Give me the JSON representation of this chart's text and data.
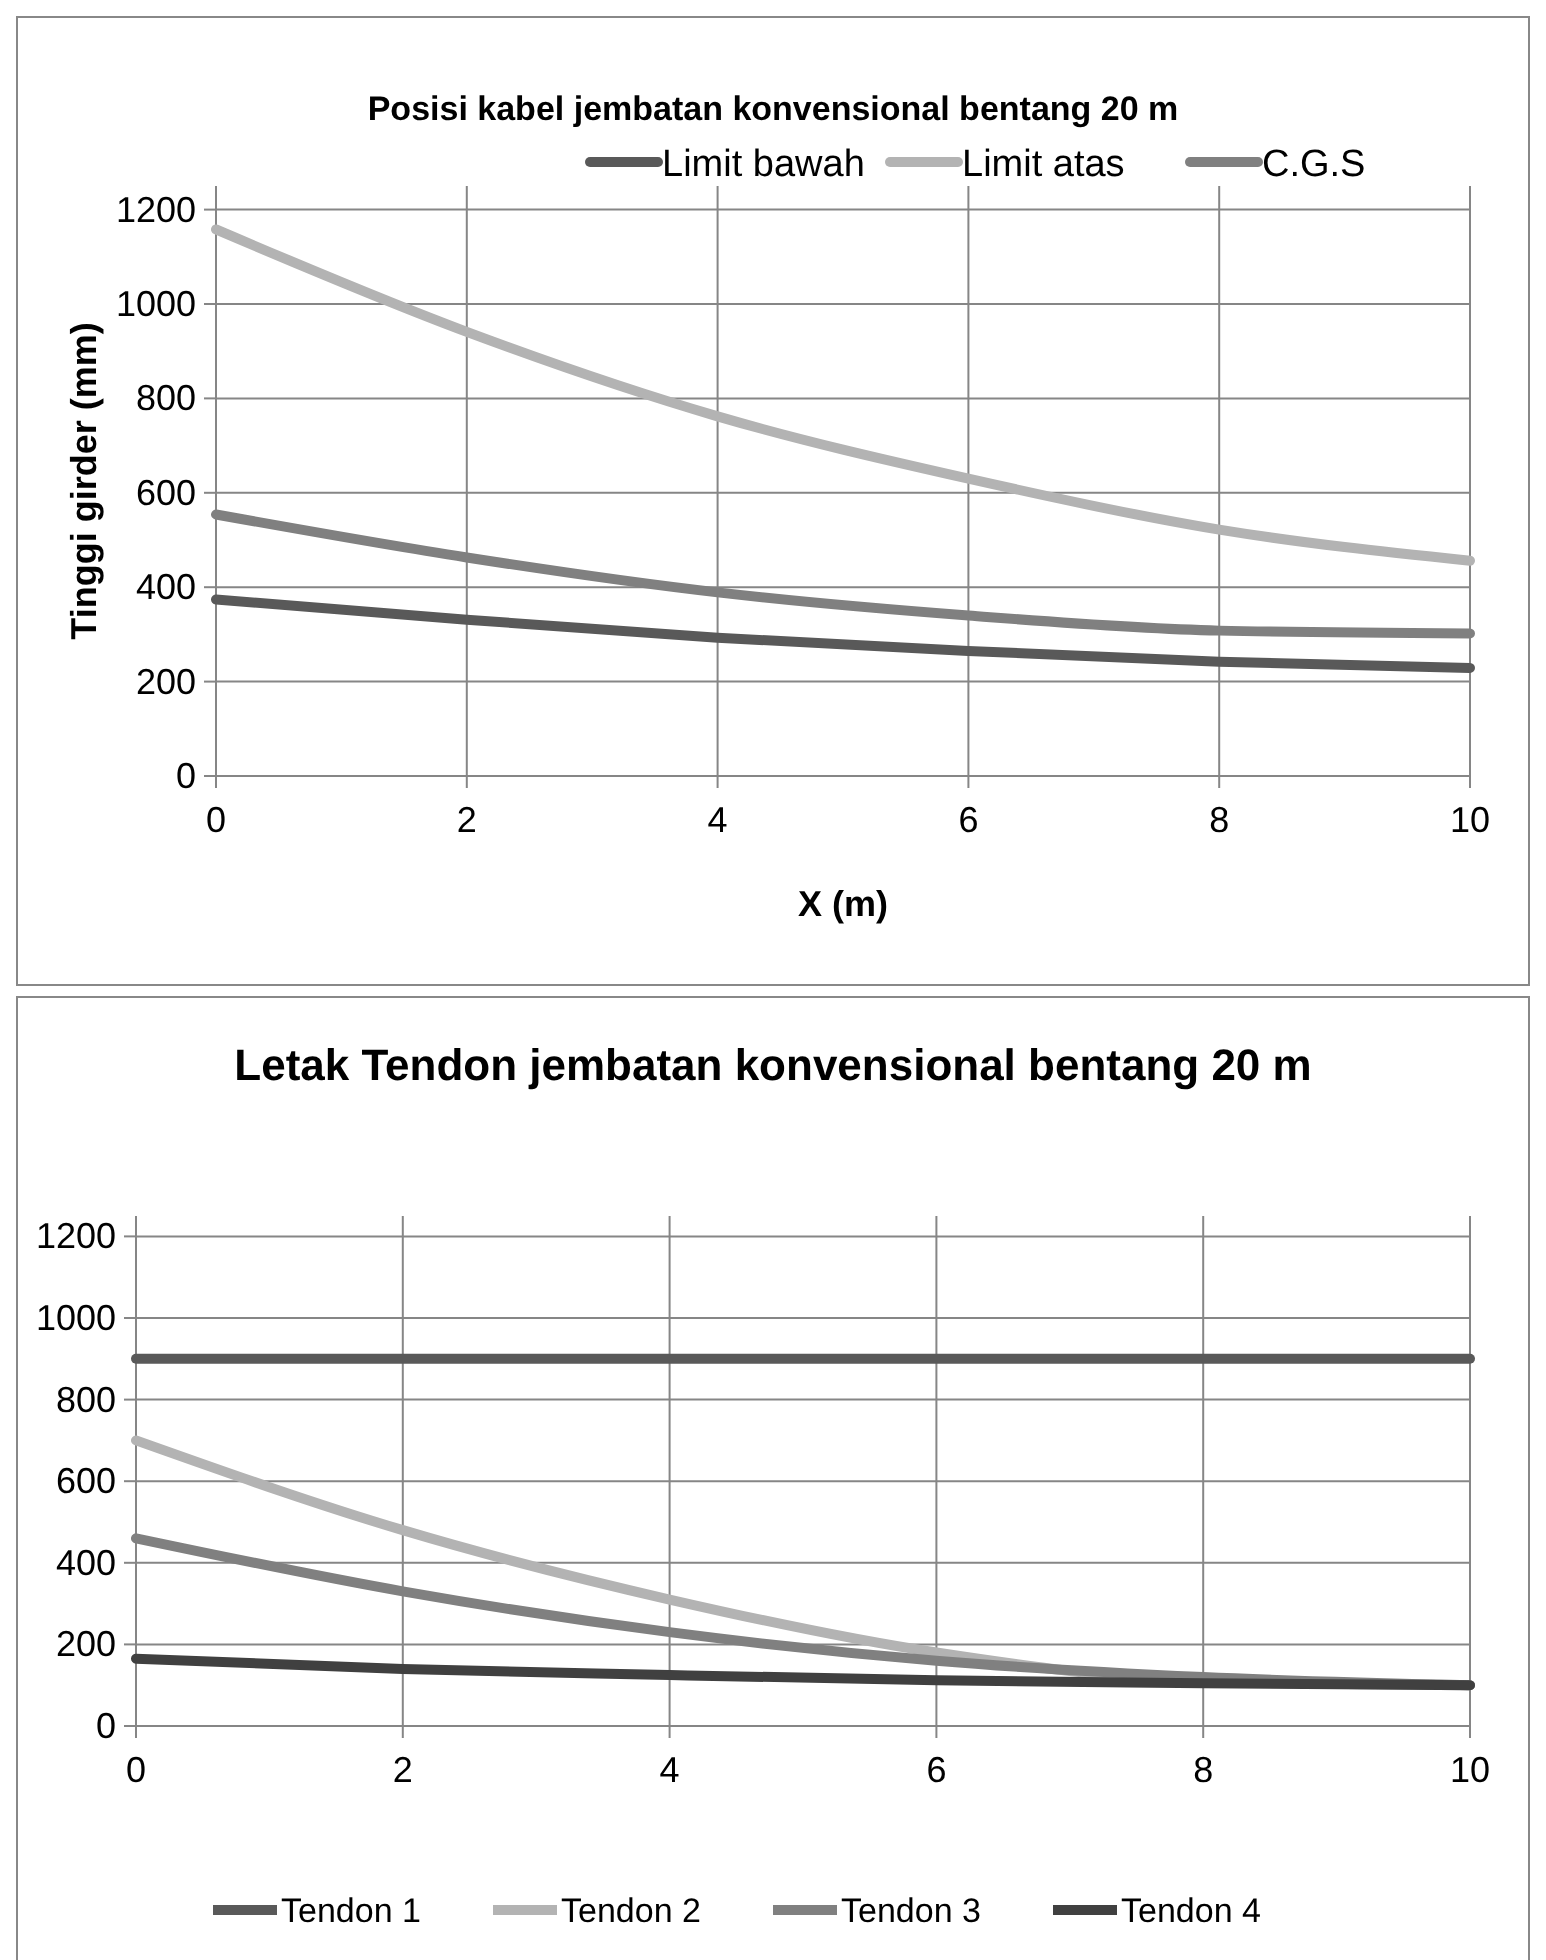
{
  "chart_data": [
    {
      "type": "line",
      "title": "Posisi kabel jembatan konvensional bentang 20 m",
      "xlabel": "X (m)",
      "ylabel": "Tinggi girder (mm)",
      "x": [
        0,
        2,
        4,
        6,
        8,
        10
      ],
      "xlim": [
        0,
        10
      ],
      "xticks": [
        0,
        2,
        4,
        6,
        8,
        10
      ],
      "ylim": [
        0,
        1250
      ],
      "yticks": [
        0,
        200,
        400,
        600,
        800,
        1000,
        1200
      ],
      "grid": true,
      "legend": "top right",
      "marker": "none",
      "line_style": "solid",
      "series": [
        {
          "name": "Limit bawah",
          "color": "#595959",
          "values": [
            374,
            331,
            293,
            265,
            242,
            229
          ]
        },
        {
          "name": "Limit atas",
          "color": "#b3b3b3",
          "values": [
            1158,
            941,
            762,
            630,
            522,
            456
          ]
        },
        {
          "name": "C.G.S",
          "color": "#808080",
          "values": [
            554,
            463,
            389,
            340,
            308,
            302
          ]
        }
      ]
    },
    {
      "type": "line",
      "title": "Letak Tendon jembatan konvensional bentang 20 m",
      "x": [
        0,
        2,
        4,
        6,
        8,
        10
      ],
      "xlim": [
        0,
        10
      ],
      "xticks": [
        0,
        2,
        4,
        6,
        8,
        10
      ],
      "ylim": [
        0,
        1250
      ],
      "yticks": [
        0,
        200,
        400,
        600,
        800,
        1000,
        1200
      ],
      "grid": true,
      "legend": "bottom",
      "marker": "none",
      "line_style": "solid",
      "series": [
        {
          "name": "Tendon 1",
          "color": "#595959",
          "values": [
            900,
            900,
            900,
            900,
            900,
            900
          ]
        },
        {
          "name": "Tendon 2",
          "color": "#b3b3b3",
          "values": [
            700,
            480,
            310,
            180,
            110,
            100
          ]
        },
        {
          "name": "Tendon 3",
          "color": "#808080",
          "values": [
            460,
            330,
            230,
            160,
            120,
            100
          ]
        },
        {
          "name": "Tendon 4",
          "color": "#404040",
          "values": [
            165,
            140,
            125,
            112,
            105,
            100
          ]
        }
      ]
    }
  ]
}
